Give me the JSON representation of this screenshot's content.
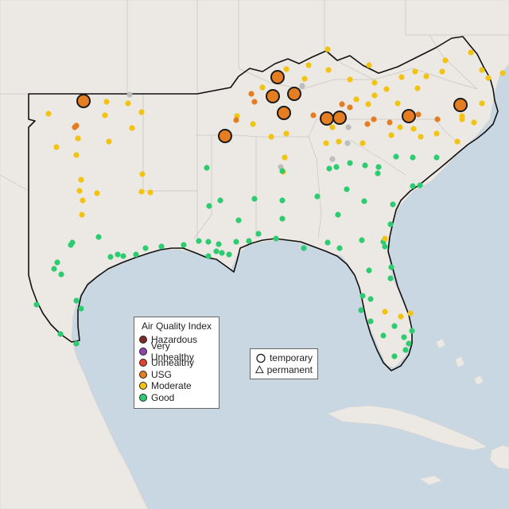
{
  "colors": {
    "water": "#c9d7e3",
    "land": "#ece9e4",
    "hazardous": "#7e2a22",
    "very_unhealthy": "#8e44ad",
    "unhealthy": "#e0442c",
    "usg": "#e57e22",
    "moderate": "#f2c311",
    "good": "#2ecc71",
    "unknown": "#bdbdbd"
  },
  "aqi_legend": {
    "title": "Air Quality Index",
    "items": [
      {
        "label": "Hazardous",
        "key": "hazardous"
      },
      {
        "label": "Very Unhealthy",
        "key": "very_unhealthy"
      },
      {
        "label": "Unhealthy",
        "key": "unhealthy"
      },
      {
        "label": "USG",
        "key": "usg"
      },
      {
        "label": "Moderate",
        "key": "moderate"
      },
      {
        "label": "Good",
        "key": "good"
      }
    ]
  },
  "type_legend": {
    "items": [
      {
        "label": "temporary",
        "shape": "circle"
      },
      {
        "label": "permanent",
        "shape": "triangle"
      }
    ]
  }
}
